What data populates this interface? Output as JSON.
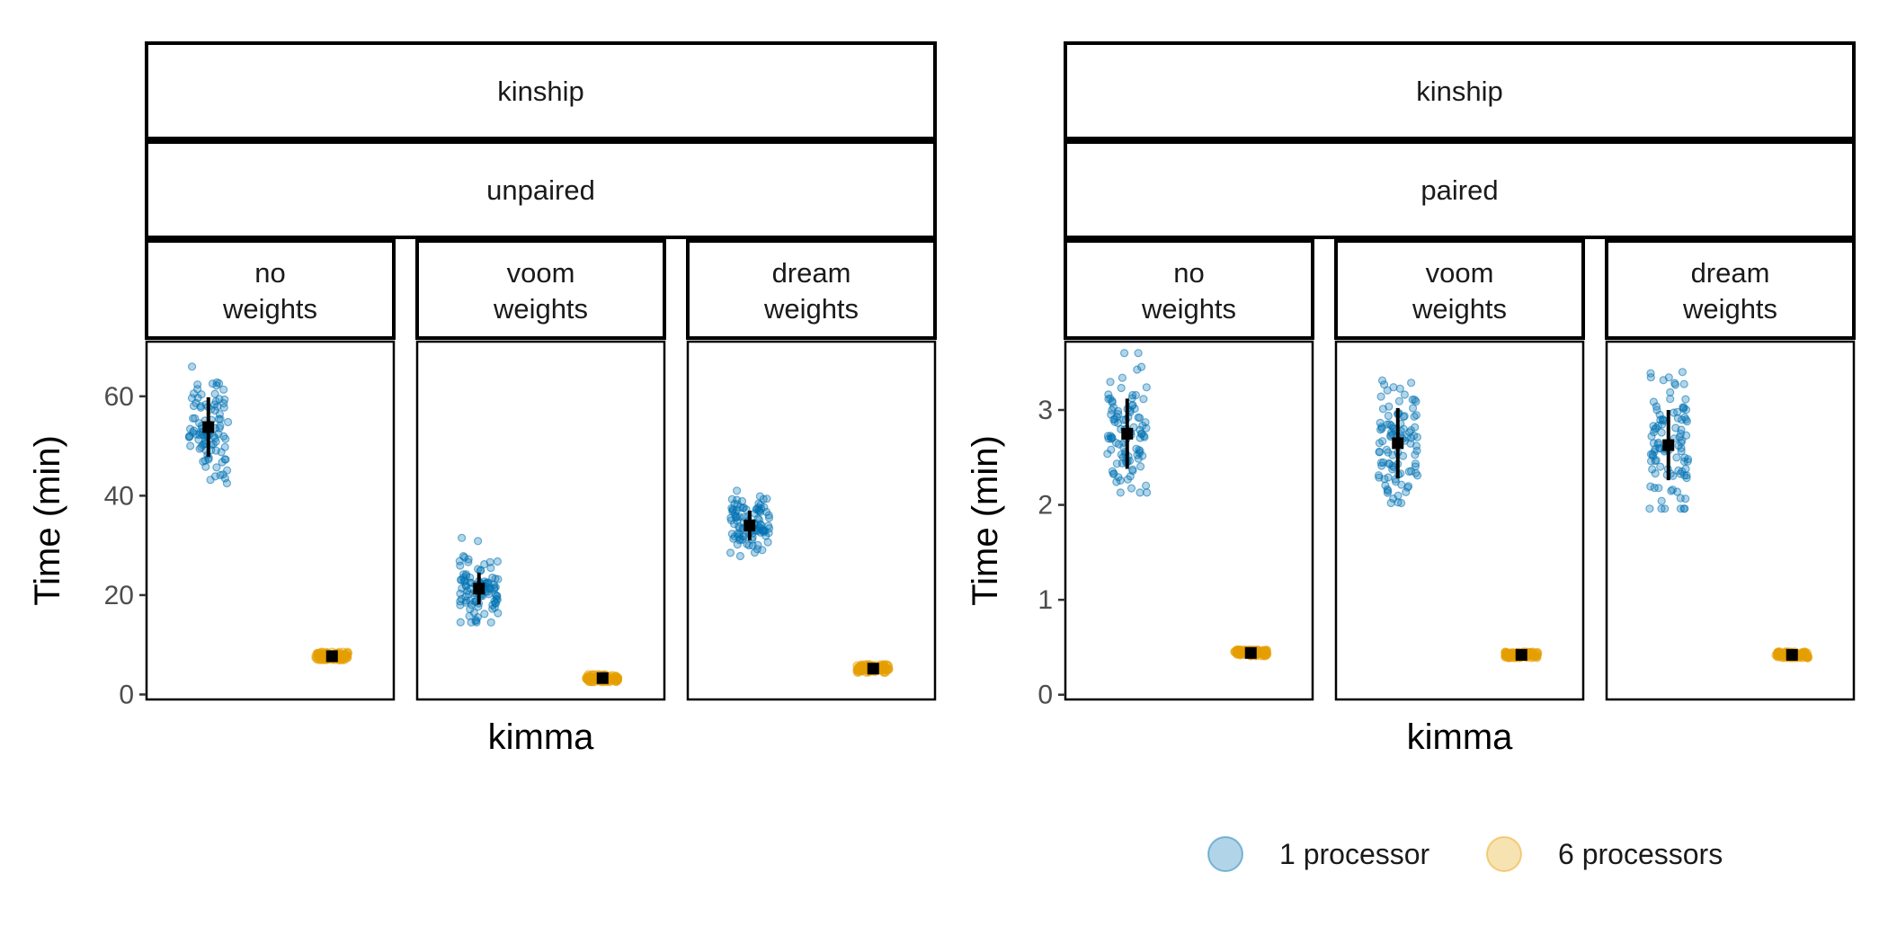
{
  "legend": {
    "items": [
      {
        "label": "1 processor",
        "color": "#0072B2"
      },
      {
        "label": "6 processors",
        "color": "#E69F00"
      }
    ]
  },
  "chart_data": [
    {
      "type": "scatter",
      "subtype": "jittered strip plot with mean and SD",
      "strip_top": "kinship",
      "strip_mid": "unpaired",
      "xlabel": "kimma",
      "ylabel": "Time (min)",
      "ylim": [
        -1,
        71
      ],
      "yticks": [
        0,
        20,
        40,
        60
      ],
      "panels": [
        {
          "label_lines": [
            "no",
            "weights"
          ],
          "groups": [
            {
              "series": "1 processor",
              "mean": 53.8,
              "sd": 6.0,
              "min": 42.5,
              "max": 68.5
            },
            {
              "series": "6 processors",
              "mean": 7.7,
              "sd": 0.5,
              "min": 7.0,
              "max": 8.5
            }
          ]
        },
        {
          "label_lines": [
            "voom",
            "weights"
          ],
          "groups": [
            {
              "series": "1 processor",
              "mean": 21.3,
              "sd": 3.2,
              "min": 14.5,
              "max": 31.5
            },
            {
              "series": "6 processors",
              "mean": 3.3,
              "sd": 0.4,
              "min": 2.6,
              "max": 4.0
            }
          ]
        },
        {
          "label_lines": [
            "dream",
            "weights"
          ],
          "groups": [
            {
              "series": "1 processor",
              "mean": 34.0,
              "sd": 3.0,
              "min": 26.5,
              "max": 41.0
            },
            {
              "series": "6 processors",
              "mean": 5.2,
              "sd": 0.5,
              "min": 4.5,
              "max": 6.0
            }
          ]
        }
      ]
    },
    {
      "type": "scatter",
      "subtype": "jittered strip plot with mean and SD",
      "strip_top": "kinship",
      "strip_mid": "paired",
      "xlabel": "kimma",
      "ylabel": "Time (min)",
      "ylim": [
        -0.05,
        3.72
      ],
      "yticks": [
        0,
        1,
        2,
        3
      ],
      "panels": [
        {
          "label_lines": [
            "no",
            "weights"
          ],
          "groups": [
            {
              "series": "1 processor",
              "mean": 2.75,
              "sd": 0.37,
              "min": 2.13,
              "max": 3.6
            },
            {
              "series": "6 processors",
              "mean": 0.44,
              "sd": 0.02,
              "min": 0.41,
              "max": 0.47
            }
          ]
        },
        {
          "label_lines": [
            "voom",
            "weights"
          ],
          "groups": [
            {
              "series": "1 processor",
              "mean": 2.65,
              "sd": 0.37,
              "min": 2.02,
              "max": 3.42
            },
            {
              "series": "6 processors",
              "mean": 0.42,
              "sd": 0.02,
              "min": 0.39,
              "max": 0.45
            }
          ]
        },
        {
          "label_lines": [
            "dream",
            "weights"
          ],
          "groups": [
            {
              "series": "1 processor",
              "mean": 2.63,
              "sd": 0.37,
              "min": 1.96,
              "max": 3.4
            },
            {
              "series": "6 processors",
              "mean": 0.42,
              "sd": 0.02,
              "min": 0.39,
              "max": 0.45
            }
          ]
        }
      ]
    }
  ]
}
